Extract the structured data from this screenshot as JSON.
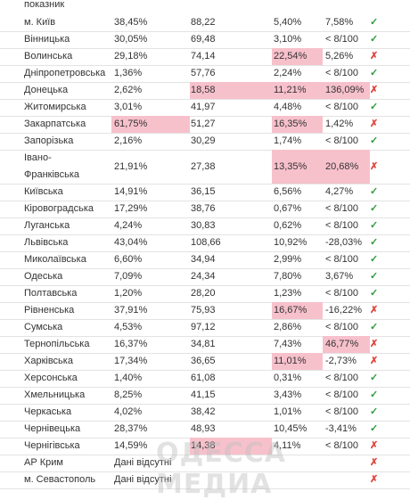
{
  "header": {
    "top_label": "показник"
  },
  "rows": [
    {
      "region": "м. Київ",
      "c1": "38,45%",
      "c2": "88,22",
      "c3": "5,40%",
      "c4": "7,58%",
      "status": "✓",
      "hl": [],
      "ok": true
    },
    {
      "region": "Вінницька",
      "c1": "30,05%",
      "c2": "69,48",
      "c3": "3,10%",
      "c4": "< 8/100",
      "status": "✓",
      "hl": [],
      "ok": true
    },
    {
      "region": "Волинська",
      "c1": "29,18%",
      "c2": "74,14",
      "c3": "22,54%",
      "c4": "5,26%",
      "status": "✗",
      "hl": [
        3
      ],
      "ok": false
    },
    {
      "region": "Дніпропетровська",
      "c1": "1,36%",
      "c2": "57,76",
      "c3": "2,24%",
      "c4": "< 8/100",
      "status": "✓",
      "hl": [],
      "ok": true
    },
    {
      "region": "Донецька",
      "c1": "2,62%",
      "c2": "18,58",
      "c3": "11,21%",
      "c4": "136,09%",
      "status": "✗",
      "hl": [
        2,
        3,
        4
      ],
      "ok": false
    },
    {
      "region": "Житомирська",
      "c1": "3,01%",
      "c2": "41,97",
      "c3": "4,48%",
      "c4": "< 8/100",
      "status": "✓",
      "hl": [],
      "ok": true
    },
    {
      "region": "Закарпатська",
      "c1": "61,75%",
      "c2": "51,27",
      "c3": "16,35%",
      "c4": "1,42%",
      "status": "✗",
      "hl": [
        1,
        3
      ],
      "ok": false
    },
    {
      "region": "Запорізька",
      "c1": "2,16%",
      "c2": "30,29",
      "c3": "1,74%",
      "c4": "< 8/100",
      "status": "✓",
      "hl": [],
      "ok": true
    },
    {
      "region": "Івано-Франківська",
      "c1": "21,91%",
      "c2": "27,38",
      "c3": "13,35%",
      "c4": "20,68%",
      "status": "✗",
      "hl": [
        3,
        4
      ],
      "ok": false,
      "tall": true
    },
    {
      "region": "Київська",
      "c1": "14,91%",
      "c2": "36,15",
      "c3": "6,56%",
      "c4": "4,27%",
      "status": "✓",
      "hl": [],
      "ok": true
    },
    {
      "region": "Кіровоградська",
      "c1": "17,29%",
      "c2": "38,76",
      "c3": "0,67%",
      "c4": "< 8/100",
      "status": "✓",
      "hl": [],
      "ok": true
    },
    {
      "region": "Луганська",
      "c1": "4,24%",
      "c2": "30,83",
      "c3": "0,62%",
      "c4": "< 8/100",
      "status": "✓",
      "hl": [],
      "ok": true
    },
    {
      "region": "Львівська",
      "c1": "43,04%",
      "c2": "108,66",
      "c3": "10,92%",
      "c4": "-28,03%",
      "status": "✓",
      "hl": [],
      "ok": true
    },
    {
      "region": "Миколаївська",
      "c1": "6,60%",
      "c2": "34,94",
      "c3": "2,99%",
      "c4": "< 8/100",
      "status": "✓",
      "hl": [],
      "ok": true
    },
    {
      "region": "Одеська",
      "c1": "7,09%",
      "c2": "24,34",
      "c3": "7,80%",
      "c4": "3,67%",
      "status": "✓",
      "hl": [],
      "ok": true
    },
    {
      "region": "Полтавська",
      "c1": "1,20%",
      "c2": "28,20",
      "c3": "1,23%",
      "c4": "< 8/100",
      "status": "✓",
      "hl": [],
      "ok": true
    },
    {
      "region": "Рівненська",
      "c1": "37,91%",
      "c2": "75,93",
      "c3": "16,67%",
      "c4": "-16,22%",
      "status": "✗",
      "hl": [
        3
      ],
      "ok": false
    },
    {
      "region": "Сумська",
      "c1": "4,53%",
      "c2": "97,12",
      "c3": "2,86%",
      "c4": "< 8/100",
      "status": "✓",
      "hl": [],
      "ok": true
    },
    {
      "region": "Тернопільська",
      "c1": "16,37%",
      "c2": "34,81",
      "c3": "7,43%",
      "c4": "46,77%",
      "status": "✗",
      "hl": [
        4
      ],
      "ok": false
    },
    {
      "region": "Харківська",
      "c1": "17,34%",
      "c2": "36,65",
      "c3": "11,01%",
      "c4": "-2,73%",
      "status": "✗",
      "hl": [
        3
      ],
      "ok": false
    },
    {
      "region": "Херсонська",
      "c1": "1,40%",
      "c2": "61,08",
      "c3": "0,31%",
      "c4": "< 8/100",
      "status": "✓",
      "hl": [],
      "ok": true
    },
    {
      "region": "Хмельницька",
      "c1": "8,25%",
      "c2": "41,15",
      "c3": "3,43%",
      "c4": "< 8/100",
      "status": "✓",
      "hl": [],
      "ok": true
    },
    {
      "region": "Черкаська",
      "c1": "4,02%",
      "c2": "38,42",
      "c3": "1,01%",
      "c4": "< 8/100",
      "status": "✓",
      "hl": [],
      "ok": true
    },
    {
      "region": "Чернівецька",
      "c1": "28,37%",
      "c2": "48,93",
      "c3": "10,45%",
      "c4": "-3,41%",
      "status": "✓",
      "hl": [],
      "ok": true
    },
    {
      "region": "Чернігівська",
      "c1": "14,59%",
      "c2": "14,38",
      "c3": "4,11%",
      "c4": "< 8/100",
      "status": "✗",
      "hl": [
        2
      ],
      "ok": false
    },
    {
      "region": "АР Крим",
      "nodata": "Дані відсутні",
      "status": "✗",
      "ok": false
    },
    {
      "region": "м. Севастополь",
      "nodata": "Дані відсутні",
      "status": "✗",
      "ok": false
    }
  ],
  "watermark": {
    "text": "ОДЕССА МЕДИА"
  },
  "colors": {
    "highlight": "#f7c1cc",
    "ok": "#2e9a3c",
    "bad": "#e0453d"
  }
}
